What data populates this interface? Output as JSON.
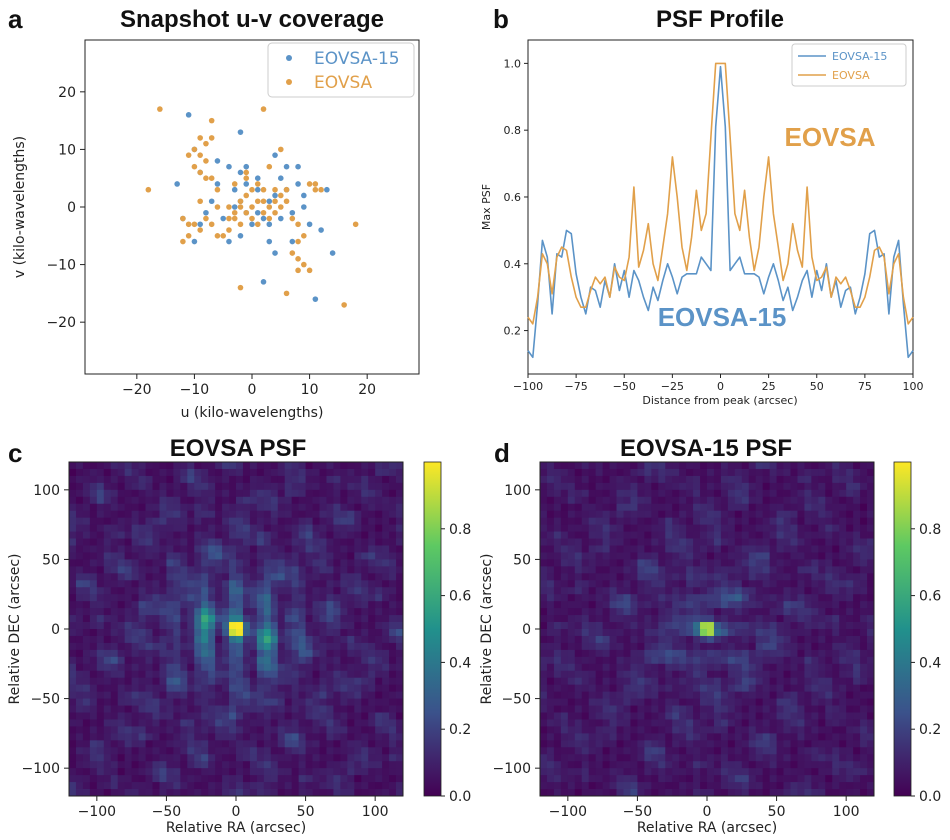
{
  "colors": {
    "blue": "#5b93c7",
    "orange": "#e1a04a",
    "axis": "#222222"
  },
  "panels": {
    "a": "a",
    "b": "b",
    "c": "c",
    "d": "d"
  },
  "chart_data": [
    {
      "type": "scatter",
      "title": "Snapshot u-v coverage",
      "xlabel": "u (kilo-wavelengths)",
      "ylabel": "v (kilo-wavelengths)",
      "xlim": [
        -29,
        29
      ],
      "ylim": [
        -29,
        29
      ],
      "xticks": [
        -20,
        -10,
        0,
        10,
        20
      ],
      "yticks": [
        -20,
        -10,
        0,
        10,
        20
      ],
      "legend": "top-right",
      "series": [
        {
          "name": "EOVSA-15",
          "color": "#5b93c7",
          "points": [
            [
              -11,
              16
            ],
            [
              -2,
              13
            ],
            [
              -10,
              10
            ],
            [
              -13,
              4
            ],
            [
              -9,
              6
            ],
            [
              -6,
              8
            ],
            [
              -4,
              7
            ],
            [
              -2,
              6
            ],
            [
              -1,
              4
            ],
            [
              -3,
              3
            ],
            [
              1,
              3
            ],
            [
              4,
              2
            ],
            [
              6,
              3
            ],
            [
              8,
              4
            ],
            [
              -8,
              -1
            ],
            [
              -5,
              -2
            ],
            [
              -3,
              0
            ],
            [
              -1,
              -1
            ],
            [
              1,
              -1
            ],
            [
              3,
              -3
            ],
            [
              5,
              -2
            ],
            [
              7,
              -1
            ],
            [
              9,
              0
            ],
            [
              10,
              -3
            ],
            [
              7,
              -6
            ],
            [
              4,
              -8
            ],
            [
              2,
              -13
            ],
            [
              11,
              -16
            ],
            [
              14,
              -8
            ],
            [
              12,
              -4
            ],
            [
              13,
              3
            ],
            [
              6,
              7
            ],
            [
              4,
              9
            ],
            [
              -7,
              1
            ],
            [
              -9,
              -3
            ],
            [
              -4,
              -6
            ],
            [
              -2,
              -5
            ],
            [
              0,
              -3
            ],
            [
              2,
              -2
            ],
            [
              -6,
              4
            ],
            [
              -2,
              1
            ],
            [
              3,
              1
            ],
            [
              8,
              7
            ],
            [
              5,
              5
            ],
            [
              -12,
              -2
            ],
            [
              -10,
              -6
            ],
            [
              1,
              5
            ],
            [
              9,
              2
            ],
            [
              -1,
              7
            ],
            [
              3,
              -6
            ]
          ]
        },
        {
          "name": "EOVSA",
          "color": "#e1a04a",
          "points": [
            [
              -16,
              17
            ],
            [
              -7,
              15
            ],
            [
              2,
              17
            ],
            [
              -18,
              3
            ],
            [
              -11,
              9
            ],
            [
              -9,
              12
            ],
            [
              -8,
              11
            ],
            [
              -7,
              12
            ],
            [
              -10,
              10
            ],
            [
              -9,
              9
            ],
            [
              -8,
              8
            ],
            [
              -10,
              7
            ],
            [
              -9,
              6
            ],
            [
              -8,
              5
            ],
            [
              -7,
              5
            ],
            [
              -11,
              -3
            ],
            [
              -12,
              -2
            ],
            [
              -12,
              -6
            ],
            [
              -10,
              -3
            ],
            [
              -9,
              -4
            ],
            [
              -11,
              -5
            ],
            [
              -7,
              -3
            ],
            [
              -6,
              -5
            ],
            [
              -5,
              -5
            ],
            [
              -4,
              -4
            ],
            [
              -4,
              -2
            ],
            [
              -6,
              0
            ],
            [
              -4,
              0
            ],
            [
              -3,
              -1
            ],
            [
              -2,
              1
            ],
            [
              -1,
              2
            ],
            [
              -1,
              -1
            ],
            [
              0,
              0
            ],
            [
              1,
              1
            ],
            [
              2,
              1
            ],
            [
              2,
              -1
            ],
            [
              3,
              0
            ],
            [
              4,
              1
            ],
            [
              5,
              2
            ],
            [
              6,
              3
            ],
            [
              4,
              -1
            ],
            [
              5,
              0
            ],
            [
              -2,
              0
            ],
            [
              0,
              3
            ],
            [
              1,
              4
            ],
            [
              -1,
              5
            ],
            [
              0,
              -2
            ],
            [
              1,
              -3
            ],
            [
              3,
              -2
            ],
            [
              -3,
              -2
            ],
            [
              -2,
              -3
            ],
            [
              4,
              3
            ],
            [
              7,
              -2
            ],
            [
              8,
              -3
            ],
            [
              9,
              -5
            ],
            [
              8,
              -6
            ],
            [
              7,
              -8
            ],
            [
              8,
              -9
            ],
            [
              9,
              -10
            ],
            [
              10,
              -11
            ],
            [
              8,
              -11
            ],
            [
              11,
              3
            ],
            [
              10,
              4
            ],
            [
              11,
              4
            ],
            [
              12,
              3
            ],
            [
              -1,
              6
            ],
            [
              3,
              7
            ],
            [
              5,
              10
            ],
            [
              18,
              -3
            ],
            [
              16,
              -17
            ],
            [
              6,
              -15
            ],
            [
              -2,
              -14
            ],
            [
              -6,
              3
            ],
            [
              -9,
              1
            ],
            [
              -3,
              4
            ],
            [
              2,
              3
            ],
            [
              6,
              1
            ],
            [
              -8,
              -2
            ]
          ]
        }
      ]
    },
    {
      "type": "line",
      "title": "PSF Profile",
      "xlabel": "Distance from peak (arcsec)",
      "ylabel": "Max PSF",
      "xlim": [
        -100,
        100
      ],
      "ylim": [
        0.07,
        1.07
      ],
      "xticks": [
        -100,
        -75,
        -50,
        -25,
        0,
        25,
        50,
        75,
        100
      ],
      "yticks": [
        0.2,
        0.4,
        0.6,
        0.8,
        1.0
      ],
      "legend": "top-right",
      "x": [
        -100,
        -97.5,
        -95,
        -92.5,
        -90,
        -87.5,
        -85,
        -82.5,
        -80,
        -77.5,
        -75,
        -72.5,
        -70,
        -67.5,
        -65,
        -62.5,
        -60,
        -57.5,
        -55,
        -52.5,
        -50,
        -47.5,
        -45,
        -42.5,
        -40,
        -37.5,
        -35,
        -32.5,
        -30,
        -27.5,
        -25,
        -22.5,
        -20,
        -17.5,
        -15,
        -12.5,
        -10,
        -7.5,
        -5,
        -2.5,
        0,
        2.5,
        5,
        7.5,
        10,
        12.5,
        15,
        17.5,
        20,
        22.5,
        25,
        27.5,
        30,
        32.5,
        35,
        37.5,
        40,
        42.5,
        45,
        47.5,
        50,
        52.5,
        55,
        57.5,
        60,
        62.5,
        65,
        67.5,
        70,
        72.5,
        75,
        77.5,
        80,
        82.5,
        85,
        87.5,
        90,
        92.5,
        95,
        97.5,
        100
      ],
      "series": [
        {
          "name": "EOVSA-15",
          "color": "#5b93c7",
          "values": [
            0.14,
            0.12,
            0.28,
            0.47,
            0.42,
            0.25,
            0.43,
            0.42,
            0.5,
            0.49,
            0.37,
            0.3,
            0.25,
            0.33,
            0.32,
            0.27,
            0.35,
            0.3,
            0.4,
            0.32,
            0.38,
            0.3,
            0.38,
            0.35,
            0.3,
            0.26,
            0.33,
            0.29,
            0.35,
            0.4,
            0.36,
            0.31,
            0.36,
            0.37,
            0.37,
            0.37,
            0.42,
            0.4,
            0.38,
            0.81,
            0.99,
            0.81,
            0.38,
            0.4,
            0.42,
            0.37,
            0.37,
            0.37,
            0.36,
            0.31,
            0.36,
            0.4,
            0.35,
            0.29,
            0.33,
            0.26,
            0.3,
            0.35,
            0.38,
            0.3,
            0.38,
            0.32,
            0.4,
            0.3,
            0.35,
            0.27,
            0.32,
            0.33,
            0.25,
            0.3,
            0.37,
            0.49,
            0.5,
            0.42,
            0.43,
            0.25,
            0.42,
            0.47,
            0.28,
            0.12,
            0.14
          ]
        },
        {
          "name": "EOVSA",
          "color": "#e1a04a",
          "values": [
            0.24,
            0.22,
            0.3,
            0.43,
            0.4,
            0.31,
            0.42,
            0.45,
            0.44,
            0.36,
            0.3,
            0.27,
            0.27,
            0.32,
            0.36,
            0.34,
            0.36,
            0.3,
            0.39,
            0.36,
            0.35,
            0.42,
            0.63,
            0.39,
            0.44,
            0.52,
            0.4,
            0.35,
            0.45,
            0.55,
            0.72,
            0.6,
            0.45,
            0.38,
            0.48,
            0.62,
            0.5,
            0.55,
            0.78,
            1.0,
            1.0,
            1.0,
            0.78,
            0.55,
            0.5,
            0.62,
            0.48,
            0.38,
            0.45,
            0.6,
            0.72,
            0.55,
            0.45,
            0.35,
            0.4,
            0.52,
            0.44,
            0.39,
            0.63,
            0.42,
            0.35,
            0.36,
            0.39,
            0.3,
            0.36,
            0.34,
            0.36,
            0.32,
            0.27,
            0.27,
            0.3,
            0.36,
            0.44,
            0.45,
            0.42,
            0.31,
            0.4,
            0.43,
            0.3,
            0.22,
            0.24
          ]
        }
      ],
      "annotations": [
        {
          "text": "EOVSA",
          "color": "#e1a04a"
        },
        {
          "text": "EOVSA-15",
          "color": "#5b93c7"
        }
      ]
    },
    {
      "type": "heatmap",
      "title": "EOVSA PSF",
      "xlabel": "Relative RA (arcsec)",
      "ylabel": "Relative DEC (arcsec)",
      "xlim": [
        -120,
        120
      ],
      "ylim": [
        -120,
        120
      ],
      "xticks": [
        -100,
        -50,
        0,
        50,
        100
      ],
      "yticks": [
        100,
        50,
        0,
        -50,
        -100
      ],
      "colorbar": {
        "min": 0.0,
        "max": 1.0,
        "ticks": [
          "0.8",
          "0.6",
          "0.4",
          "0.2",
          "0.0"
        ]
      },
      "colormap": "viridis",
      "peak": 1.0
    },
    {
      "type": "heatmap",
      "title": "EOVSA-15 PSF",
      "xlabel": "Relative RA (arcsec)",
      "ylabel": "Relative DEC (arcsec)",
      "xlim": [
        -120,
        120
      ],
      "ylim": [
        -120,
        120
      ],
      "xticks": [
        -100,
        -50,
        0,
        50,
        100
      ],
      "yticks": [
        100,
        50,
        0,
        -50,
        -100
      ],
      "colorbar": {
        "min": 0.0,
        "max": 1.0,
        "ticks": [
          "0.8",
          "0.6",
          "0.4",
          "0.2",
          "0.0"
        ]
      },
      "colormap": "viridis",
      "peak": 1.0
    }
  ]
}
